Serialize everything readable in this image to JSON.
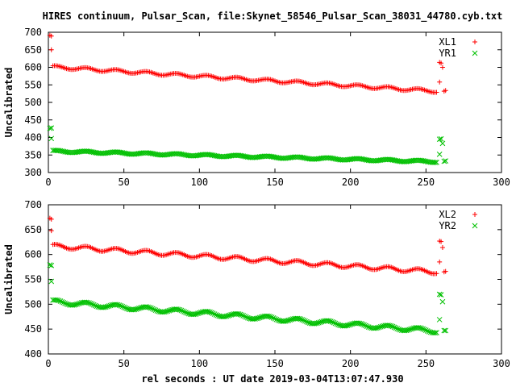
{
  "title": "HIRES continuum, Pulsar_Scan, file:Skynet_58546_Pulsar_Scan_38031_44780.cyb.txt",
  "xlabel": "rel seconds : UT date 2019-03-04T13:07:47.930",
  "colors": {
    "red": "#ff0000",
    "green": "#00c000"
  },
  "chart_data": [
    {
      "type": "scatter",
      "ylabel": "Uncalibrated",
      "xlim": [
        0,
        300
      ],
      "ylim": [
        300,
        700
      ],
      "xticks": [
        0,
        50,
        100,
        150,
        200,
        250,
        300
      ],
      "yticks": [
        300,
        350,
        400,
        450,
        500,
        550,
        600,
        650,
        700
      ],
      "legend_position": "top-right",
      "series": [
        {
          "name": "XL1",
          "marker": "plus",
          "color": "#ff0000",
          "start": [
            [
              1,
              691
            ],
            [
              2,
              689
            ],
            [
              2,
              650
            ]
          ],
          "trend": {
            "x_from": 3,
            "x_to": 257,
            "step": 1,
            "y_start": 601,
            "y_end": 532,
            "ripple": 4,
            "period": 20
          },
          "end": [
            [
              259,
              614
            ],
            [
              259,
              558
            ],
            [
              260,
              612
            ],
            [
              261,
              600
            ],
            [
              262,
              532
            ],
            [
              263,
              534
            ]
          ]
        },
        {
          "name": "YR1",
          "marker": "cross",
          "color": "#00c000",
          "start": [
            [
              1,
              426
            ],
            [
              2,
              427
            ],
            [
              2,
              397
            ]
          ],
          "trend": {
            "x_from": 3,
            "x_to": 257,
            "step": 1,
            "y_start": 361,
            "y_end": 331,
            "ripple": 2.5,
            "period": 20
          },
          "end": [
            [
              259,
              395
            ],
            [
              259,
              352
            ],
            [
              260,
              396
            ],
            [
              261,
              383
            ],
            [
              262,
              332
            ],
            [
              263,
              333
            ]
          ]
        }
      ]
    },
    {
      "type": "scatter",
      "ylabel": "Uncalibrated",
      "xlim": [
        0,
        300
      ],
      "ylim": [
        400,
        700
      ],
      "xticks": [
        0,
        50,
        100,
        150,
        200,
        250,
        300
      ],
      "yticks": [
        400,
        450,
        500,
        550,
        600,
        650,
        700
      ],
      "legend_position": "top-right",
      "series": [
        {
          "name": "XL2",
          "marker": "plus",
          "color": "#ff0000",
          "start": [
            [
              1,
              673
            ],
            [
              2,
              671
            ],
            [
              2,
              648
            ]
          ],
          "trend": {
            "x_from": 3,
            "x_to": 257,
            "step": 1,
            "y_start": 617,
            "y_end": 565,
            "ripple": 4,
            "period": 20
          },
          "end": [
            [
              259,
              627
            ],
            [
              259,
              585
            ],
            [
              260,
              626
            ],
            [
              261,
              614
            ],
            [
              262,
              565
            ],
            [
              263,
              566
            ]
          ]
        },
        {
          "name": "YR2",
          "marker": "cross",
          "color": "#00c000",
          "start": [
            [
              1,
              579
            ],
            [
              2,
              578
            ],
            [
              2,
              546
            ]
          ],
          "trend": {
            "x_from": 3,
            "x_to": 257,
            "step": 1,
            "y_start": 505,
            "y_end": 446,
            "ripple": 4,
            "period": 20
          },
          "end": [
            [
              259,
              520
            ],
            [
              259,
              469
            ],
            [
              260,
              519
            ],
            [
              261,
              505
            ],
            [
              262,
              447
            ],
            [
              263,
              447
            ]
          ]
        }
      ]
    }
  ]
}
